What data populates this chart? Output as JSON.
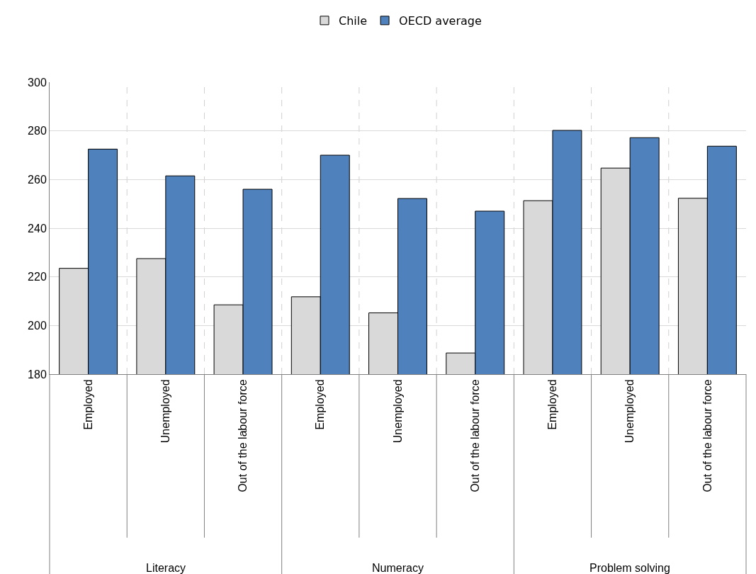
{
  "chart_data": {
    "type": "bar",
    "categories": [
      "Employed",
      "Unemployed",
      "Out of the labour force",
      "Employed",
      "Unemployed",
      "Out of the labour force",
      "Employed",
      "Unemployed",
      "Out of the labour force"
    ],
    "series": [
      {
        "name": "Chile",
        "color": "#d9d9d9",
        "values": [
          223.5,
          227.5,
          208.5,
          211.8,
          205.2,
          188.7,
          251.3,
          264.7,
          252.3
        ]
      },
      {
        "name": "OECD average",
        "color": "#4f81bd",
        "values": [
          272.5,
          261.5,
          256,
          270,
          252.2,
          247,
          280.2,
          277.2,
          273.7
        ]
      }
    ],
    "annotations": [
      "Literacy",
      "Numeracy",
      "Problem solving"
    ],
    "ylim": [
      180,
      300
    ],
    "yticks": [
      180,
      200,
      220,
      240,
      260,
      280,
      300
    ],
    "grid": true,
    "legend": "top"
  }
}
